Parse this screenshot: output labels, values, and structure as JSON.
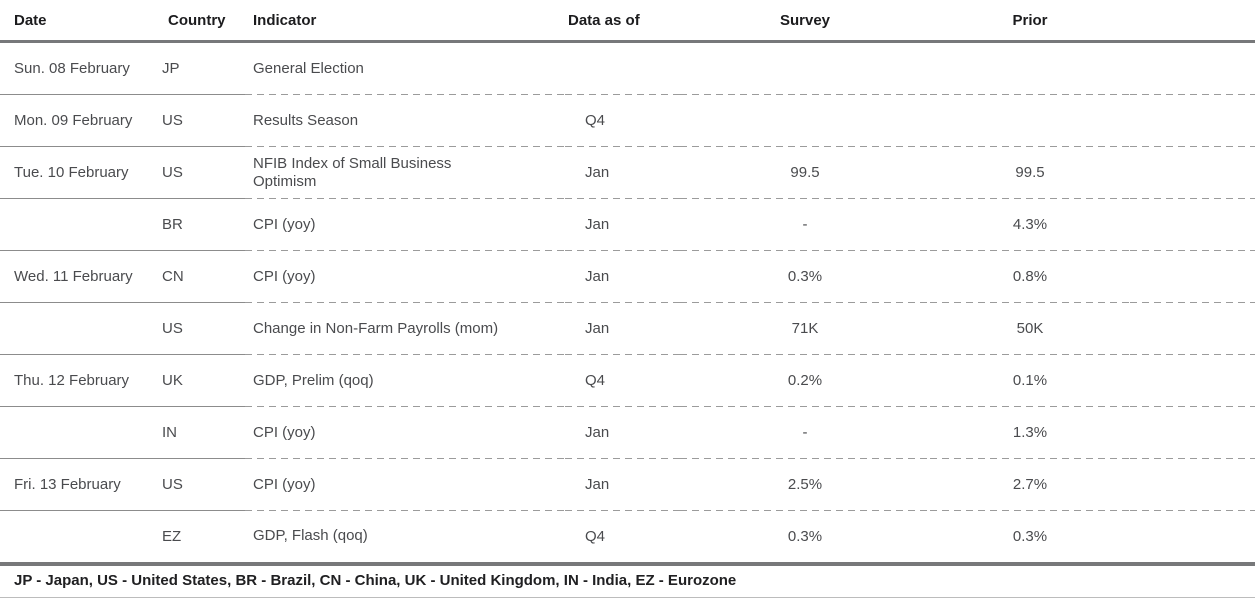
{
  "colors": {
    "thick_rule": "#77787a",
    "solid_row_rule": "#8c8c8c",
    "dashed_row_rule": "#9b9b9b",
    "header_text": "#1c1c1e",
    "body_text": "#4a4b4e",
    "footnote_text": "#202022"
  },
  "table": {
    "columns": [
      {
        "key": "date",
        "label": "Date"
      },
      {
        "key": "country",
        "label": "Country"
      },
      {
        "key": "indicator",
        "label": "Indicator"
      },
      {
        "key": "data_as_of",
        "label": "Data as of"
      },
      {
        "key": "survey",
        "label": "Survey"
      },
      {
        "key": "prior",
        "label": "Prior"
      }
    ],
    "rows": [
      {
        "date": "Sun. 08 February",
        "country": "JP",
        "indicator": "General Election",
        "data_as_of": "",
        "survey": "",
        "prior": ""
      },
      {
        "date": "Mon. 09 February",
        "country": "US",
        "indicator": "Results Season",
        "data_as_of": "Q4",
        "survey": "",
        "prior": ""
      },
      {
        "date": "Tue. 10 February",
        "country": "US",
        "indicator": "NFIB Index of Small Business Optimism",
        "data_as_of": "Jan",
        "survey": "99.5",
        "prior": "99.5"
      },
      {
        "date": "",
        "country": "BR",
        "indicator": "CPI (yoy)",
        "data_as_of": "Jan",
        "survey": "-",
        "prior": "4.3%"
      },
      {
        "date": "Wed. 11 February",
        "country": "CN",
        "indicator": "CPI (yoy)",
        "data_as_of": "Jan",
        "survey": "0.3%",
        "prior": "0.8%"
      },
      {
        "date": "",
        "country": "US",
        "indicator": "Change in Non-Farm Payrolls (mom)",
        "data_as_of": "Jan",
        "survey": "71K",
        "prior": "50K"
      },
      {
        "date": "Thu. 12 February",
        "country": "UK",
        "indicator": "GDP, Prelim (qoq)",
        "data_as_of": "Q4",
        "survey": "0.2%",
        "prior": "0.1%"
      },
      {
        "date": "",
        "country": "IN",
        "indicator": "CPI (yoy)",
        "data_as_of": "Jan",
        "survey": "-",
        "prior": "1.3%"
      },
      {
        "date": "Fri. 13 February",
        "country": "US",
        "indicator": "CPI (yoy)",
        "data_as_of": "Jan",
        "survey": "2.5%",
        "prior": "2.7%"
      },
      {
        "date": "",
        "country": "EZ",
        "indicator": "GDP, Flash (qoq)",
        "data_as_of": "Q4",
        "survey": "0.3%",
        "prior": "0.3%"
      }
    ],
    "footnote": "JP - Japan, US - United States, BR - Brazil, CN - China, UK - United Kingdom, IN - India, EZ - Eurozone"
  }
}
